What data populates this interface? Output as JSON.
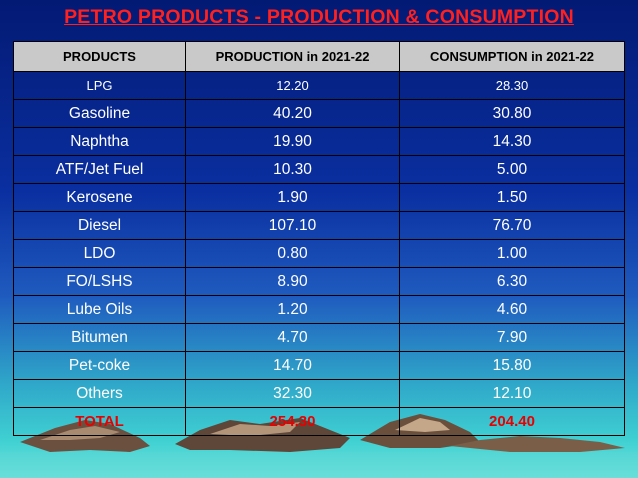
{
  "title": "PETRO PRODUCTS - PRODUCTION & CONSUMPTION",
  "table": {
    "headers": [
      "PRODUCTS",
      "PRODUCTION in 2021-22",
      "CONSUMPTION in 2021-22"
    ],
    "rows": [
      [
        "LPG",
        "12.20",
        "28.30"
      ],
      [
        "Gasoline",
        "40.20",
        "30.80"
      ],
      [
        "Naphtha",
        "19.90",
        "14.30"
      ],
      [
        "ATF/Jet Fuel",
        "10.30",
        "5.00"
      ],
      [
        "Kerosene",
        "1.90",
        "1.50"
      ],
      [
        "Diesel",
        "107.10",
        "76.70"
      ],
      [
        "LDO",
        "0.80",
        "1.00"
      ],
      [
        "FO/LSHS",
        "8.90",
        "6.30"
      ],
      [
        "Lube Oils",
        "1.20",
        "4.60"
      ],
      [
        "Bitumen",
        "4.70",
        "7.90"
      ],
      [
        "Pet-coke",
        "14.70",
        "15.80"
      ],
      [
        "Others",
        "32.30",
        "12.10"
      ]
    ],
    "total": [
      "TOTAL",
      "254.30",
      "204.40"
    ]
  },
  "colors": {
    "title": "#ff2020",
    "header_bg": "#c9c9c9",
    "total_text": "#e80000",
    "background_top": "#031a74",
    "background_bottom": "#6fe2dc",
    "mountain": "#6b5040"
  }
}
